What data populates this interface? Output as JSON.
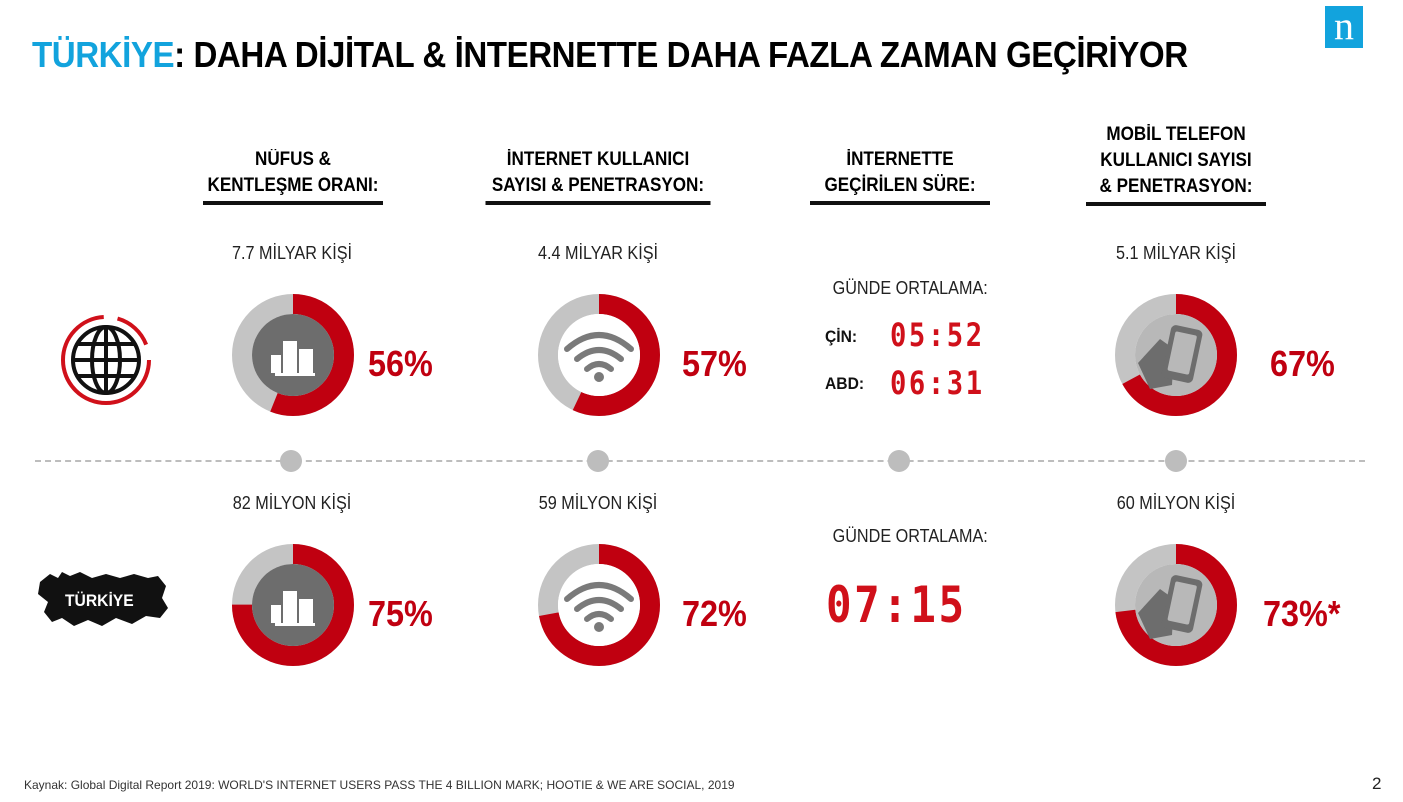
{
  "title": {
    "highlight": "TÜRKİYE",
    "rest": ": DAHA DİJİTAL & İNTERNETTE DAHA FAZLA ZAMAN GEÇİRİYOR"
  },
  "logo_letter": "n",
  "columns": [
    {
      "heading": [
        "NÜFUS &",
        "KENTLEŞME ORANI:"
      ],
      "icon": "city-buildings-icon"
    },
    {
      "heading": [
        "İNTERNET KULLANICI",
        "SAYISI & PENETRASYON:"
      ],
      "icon": "wifi-icon"
    },
    {
      "heading": [
        "İNTERNETTE",
        "GEÇİRİLEN SÜRE:"
      ],
      "icon": "clock-time"
    },
    {
      "heading": [
        "MOBİL TELEFON",
        "KULLANICI SAYISI",
        "& PENETRASYON:"
      ],
      "icon": "mobile-phone-in-hand-icon"
    }
  ],
  "world": {
    "icon": "globe-icon",
    "population": {
      "count": "7.7 MİLYAR KİŞİ",
      "pct_label": "56%",
      "pct": 56
    },
    "internet": {
      "count": "4.4 MİLYAR KİŞİ",
      "pct_label": "57%",
      "pct": 57
    },
    "time": {
      "avg_label": "GÜNDE ORTALAMA:",
      "rows": [
        {
          "country": "ÇİN:",
          "time": "05:52"
        },
        {
          "country": "ABD:",
          "time": "06:31"
        }
      ]
    },
    "mobile": {
      "count": "5.1 MİLYAR KİŞİ",
      "pct_label": "67%",
      "pct": 67
    }
  },
  "turkey": {
    "label": "TÜRKİYE",
    "icon": "turkey-map-icon",
    "population": {
      "count": "82 MİLYON KİŞİ",
      "pct_label": "75%",
      "pct": 75
    },
    "internet": {
      "count": "59 MİLYON KİŞİ",
      "pct_label": "72%",
      "pct": 72
    },
    "time": {
      "avg_label": "GÜNDE ORTALAMA:",
      "time": "07:15"
    },
    "mobile": {
      "count": "60 MİLYON KİŞİ",
      "pct_label": "73%*",
      "pct": 73
    }
  },
  "colors": {
    "accent_blue": "#12a3dd",
    "red": "#c00010",
    "grey": "#c4c4c4",
    "icon_grey": "#7a7a7a"
  },
  "source": "Kaynak: Global Digital Report 2019: WORLD'S INTERNET USERS PASS THE 4 BILLION MARK; HOOTIE  & WE ARE SOCIAL, 2019",
  "page_number": "2"
}
